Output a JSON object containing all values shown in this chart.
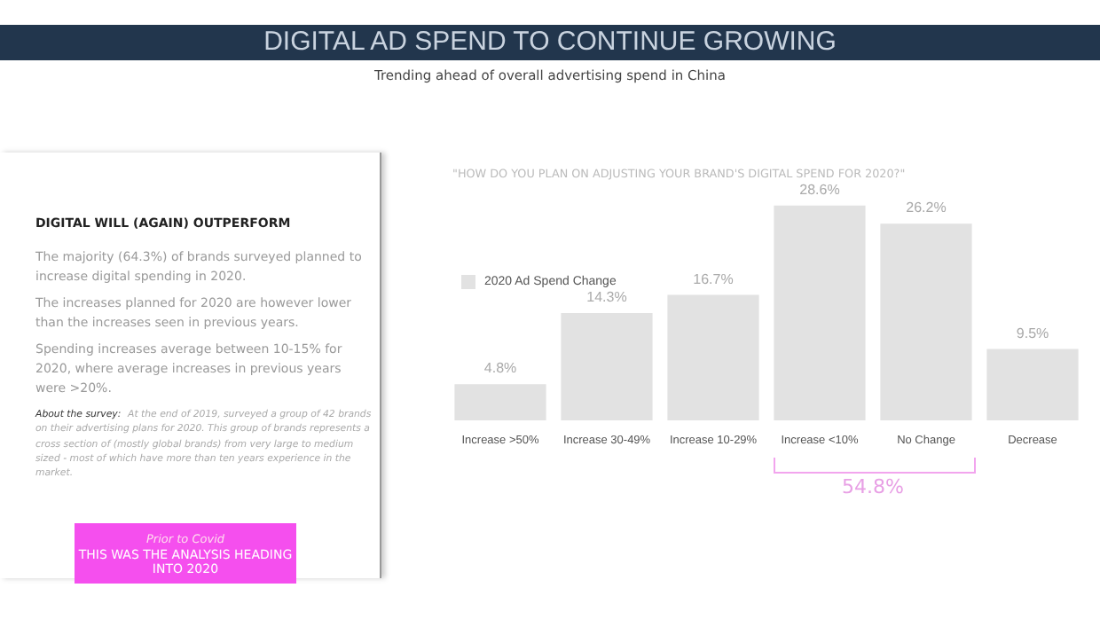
{
  "chart_data": {
    "type": "bar",
    "title": "DIGITAL AD SPEND TO CONTINUE GROWING",
    "subtitle": "Trending ahead of overall advertising spend in China",
    "categories": [
      "Increase >50%",
      "Increase 30-49%",
      "Increase 10-29%",
      "Increase <10%",
      "No Change",
      "Decrease"
    ],
    "series": [
      {
        "name": "2020 Ad Spend Change",
        "color": "#e2e2e2",
        "values": [
          4.8,
          14.3,
          16.7,
          28.6,
          26.2,
          9.5
        ],
        "value_labels": [
          "4.8%",
          "14.3%",
          "16.7%",
          "28.6%",
          "26.2%",
          "9.5%"
        ]
      }
    ],
    "legend": "top left",
    "annotations": [
      "\"HOW DO YOU PLAN ON ADJUSTING YOUR BRAND'S DIGITAL SPEND FOR 2020?\"",
      "DIGITAL WILL (AGAIN) OUTPERFORM",
      "The majority (64.3%) of brands surveyed planned to increase digital spending in 2020.",
      "The increases planned for 2020 are however lower than the increases seen in previous years.",
      "Spending increases average between 10-15% for 2020, where average increases in previous years were >20%.",
      "About the survey:",
      "At the end of 2019, surveyed a group of 42 brands on their advertising plans for 2020. This group of brands represents a cross section of (mostly global brands) from very large to medium sized - most of which have more than ten years experience in the market.",
      "Prior to Covid",
      "THIS WAS THE ANALYSIS HEADING INTO 2020",
      "54.8%"
    ]
  }
}
